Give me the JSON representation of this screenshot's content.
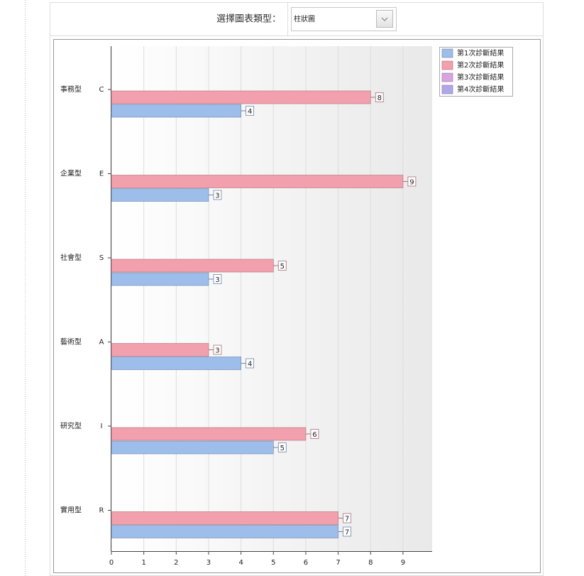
{
  "form": {
    "label": "選擇圖表類型：",
    "selected": "柱狀圖"
  },
  "chart_data": {
    "type": "bar",
    "orientation": "horizontal",
    "categories": [
      "C",
      "E",
      "S",
      "A",
      "I",
      "R"
    ],
    "category_groups": [
      "事務型",
      "企業型",
      "社會型",
      "藝術型",
      "研究型",
      "實用型"
    ],
    "series": [
      {
        "name": "第1次診斷結果",
        "color": "#9dbdeb",
        "values": [
          4,
          3,
          3,
          4,
          5,
          7
        ]
      },
      {
        "name": "第2次診斷結果",
        "color": "#f2a0ad",
        "values": [
          8,
          9,
          5,
          3,
          6,
          7
        ]
      },
      {
        "name": "第3次診斷結果",
        "color": "#d9a3e0",
        "values": [
          null,
          null,
          null,
          null,
          null,
          null
        ]
      },
      {
        "name": "第4次診斷結果",
        "color": "#b3a6e8",
        "values": [
          null,
          null,
          null,
          null,
          null,
          null
        ]
      }
    ],
    "xlim": [
      0,
      9.9
    ],
    "xticks": [
      0,
      1,
      2,
      3,
      4,
      5,
      6,
      7,
      8,
      9
    ],
    "grid": true,
    "legend": "top-right"
  }
}
